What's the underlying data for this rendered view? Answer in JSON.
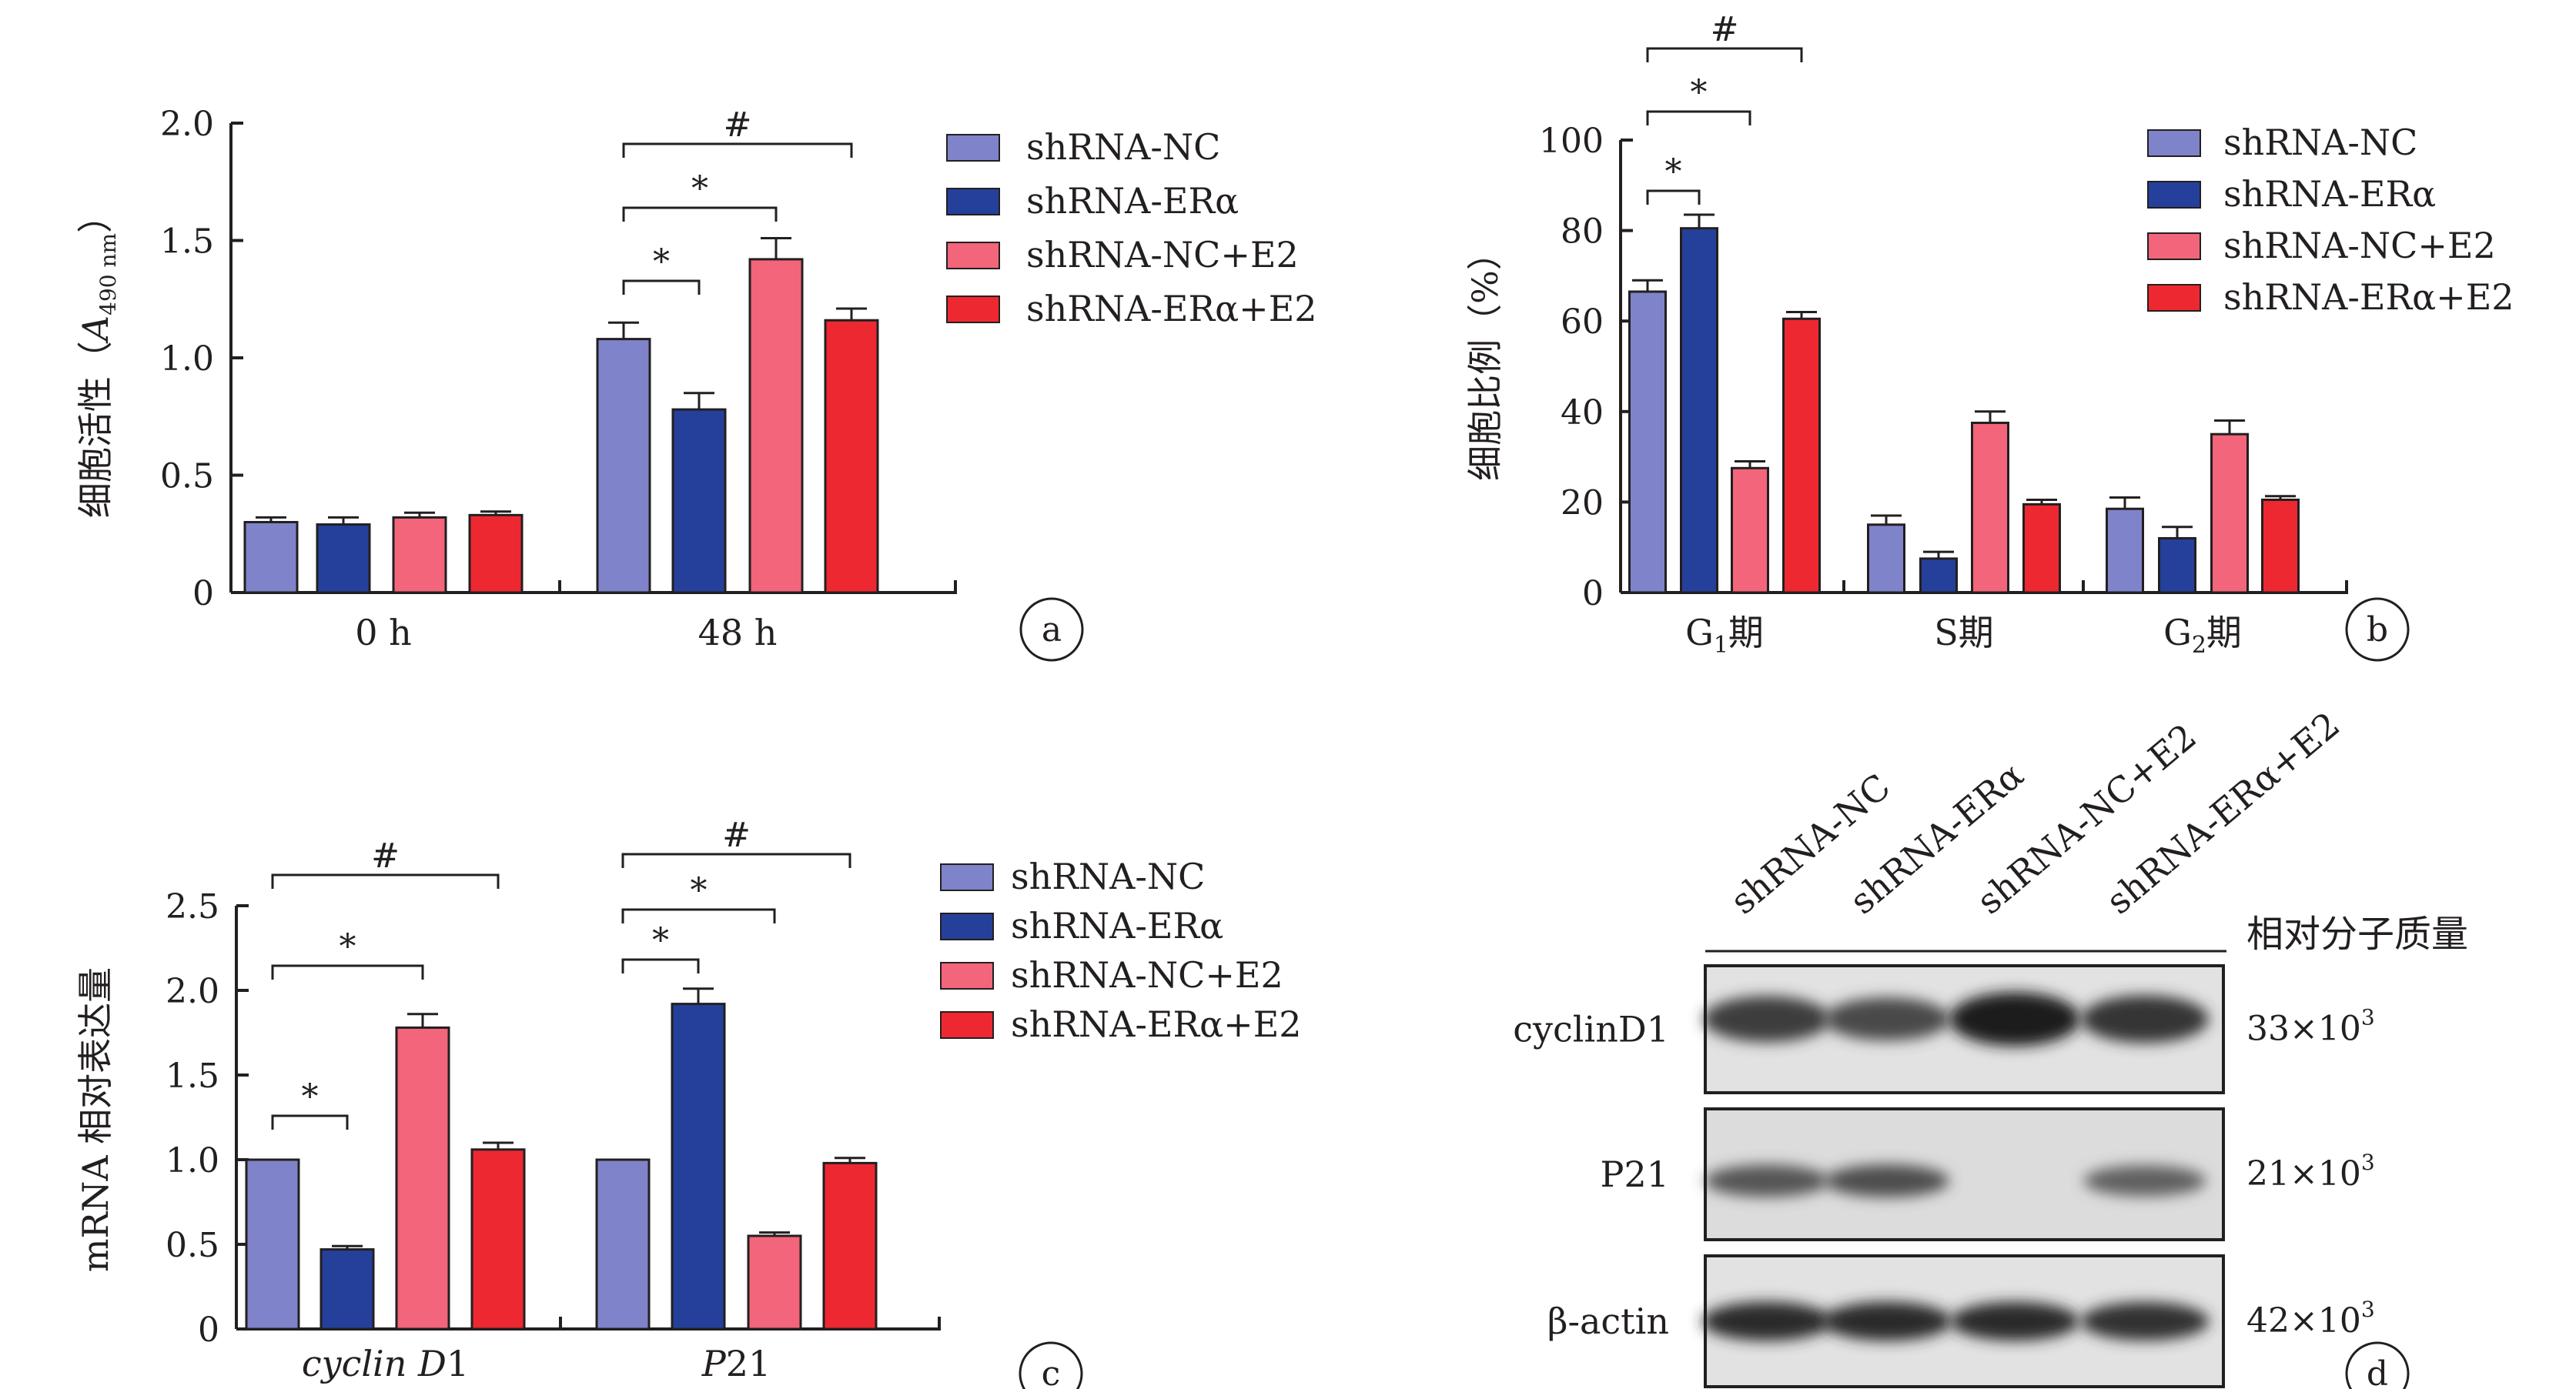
{
  "colors": {
    "shRNA-NC": "#7f83c9",
    "shRNA-ERα": "#25409a",
    "shRNA-NC+E2": "#f2657a",
    "shRNA-ERα+E2": "#ee2831",
    "axis": "#231f20"
  },
  "legend_labels": [
    "shRNA-NC",
    "shRNA-ERα",
    "shRNA-NC+E2",
    "shRNA-ERα+E2"
  ],
  "chart_data": [
    {
      "panel": "a",
      "type": "bar",
      "ylabel_main": "细胞活性（",
      "ylabel_sym": "A",
      "ylabel_sub": "490 nm",
      "ylabel_close": "）",
      "ylim": [
        0,
        2.0
      ],
      "yticks": [
        "0",
        "0.5",
        "1.0",
        "1.5",
        "2.0"
      ],
      "categories": [
        "0 h",
        "48 h"
      ],
      "series": [
        {
          "name": "shRNA-NC",
          "values": [
            0.3,
            1.08
          ],
          "errors": [
            0.02,
            0.07
          ]
        },
        {
          "name": "shRNA-ERα",
          "values": [
            0.29,
            0.78
          ],
          "errors": [
            0.03,
            0.07
          ]
        },
        {
          "name": "shRNA-NC+E2",
          "values": [
            0.32,
            1.42
          ],
          "errors": [
            0.02,
            0.09
          ]
        },
        {
          "name": "shRNA-ERα+E2",
          "values": [
            0.33,
            1.16
          ],
          "errors": [
            0.015,
            0.05
          ]
        }
      ],
      "significance": [
        {
          "label": "*",
          "category": 1,
          "from": 0,
          "to": 1
        },
        {
          "label": "*",
          "category": 1,
          "from": 0,
          "to": 2
        },
        {
          "label": "#",
          "category": 1,
          "from": 0,
          "to": 3
        }
      ],
      "legend_position": "top-right"
    },
    {
      "panel": "b",
      "type": "bar",
      "ylabel_main": "细胞比例（%）",
      "ylim": [
        0,
        100
      ],
      "yticks": [
        "0",
        "20",
        "40",
        "60",
        "80",
        "100"
      ],
      "categories": [
        {
          "pre": "G",
          "sub": "1",
          "post": "期"
        },
        {
          "pre": "S",
          "sub": "",
          "post": "期"
        },
        {
          "pre": "G",
          "sub": "2",
          "post": "期"
        }
      ],
      "series": [
        {
          "name": "shRNA-NC",
          "values": [
            66.5,
            15.0,
            18.5
          ],
          "errors": [
            2.5,
            2.0,
            2.5
          ]
        },
        {
          "name": "shRNA-ERα",
          "values": [
            80.5,
            7.5,
            12.0
          ],
          "errors": [
            3.0,
            1.5,
            2.5
          ]
        },
        {
          "name": "shRNA-NC+E2",
          "values": [
            27.5,
            37.5,
            35.0
          ],
          "errors": [
            1.5,
            2.5,
            3.0
          ]
        },
        {
          "name": "shRNA-ERα+E2",
          "values": [
            60.5,
            19.5,
            20.5
          ],
          "errors": [
            1.5,
            1.0,
            0.8
          ]
        }
      ],
      "significance": [
        {
          "label": "*",
          "category": 0,
          "from": 0,
          "to": 1
        },
        {
          "label": "*",
          "category": 0,
          "from": 0,
          "to": 2
        },
        {
          "label": "#",
          "category": 0,
          "from": 0,
          "to": 3
        }
      ],
      "legend_position": "top-right"
    },
    {
      "panel": "c",
      "type": "bar",
      "ylabel_main": "mRNA 相对表达量",
      "ylim": [
        0,
        2.5
      ],
      "yticks": [
        "0",
        "0.5",
        "1.0",
        "1.5",
        "2.0",
        "2.5"
      ],
      "categories": [
        {
          "italic": "cyclin D",
          "plain": "1"
        },
        {
          "italic": "P",
          "plain": "21"
        }
      ],
      "series": [
        {
          "name": "shRNA-NC",
          "values": [
            1.0,
            1.0
          ],
          "errors": [
            0,
            0
          ]
        },
        {
          "name": "shRNA-ERα",
          "values": [
            0.47,
            1.92
          ],
          "errors": [
            0.02,
            0.09
          ]
        },
        {
          "name": "shRNA-NC+E2",
          "values": [
            1.78,
            0.55
          ],
          "errors": [
            0.08,
            0.02
          ]
        },
        {
          "name": "shRNA-ERα+E2",
          "values": [
            1.06,
            0.98
          ],
          "errors": [
            0.04,
            0.03
          ]
        }
      ],
      "significance": [
        {
          "label": "*",
          "category": 0,
          "from": 0,
          "to": 1
        },
        {
          "label": "*",
          "category": 0,
          "from": 0,
          "to": 2
        },
        {
          "label": "#",
          "category": 0,
          "from": 0,
          "to": 3
        },
        {
          "label": "*",
          "category": 1,
          "from": 0,
          "to": 1
        },
        {
          "label": "*",
          "category": 1,
          "from": 0,
          "to": 2
        },
        {
          "label": "#",
          "category": 1,
          "from": 0,
          "to": 3
        }
      ],
      "legend_position": "top-right"
    }
  ],
  "blot": {
    "panel": "d",
    "lanes": [
      "shRNA-NC",
      "shRNA-ERα",
      "shRNA-NC+E2",
      "shRNA-ERα+E2"
    ],
    "mw_header": "相对分子质量",
    "rows": [
      {
        "name": "cyclinD1",
        "mw_base": "33×10",
        "mw_exp": "3",
        "intensities": [
          0.75,
          0.65,
          1.0,
          0.8
        ]
      },
      {
        "name": "P21",
        "mw_base": "21×10",
        "mw_exp": "3",
        "intensities": [
          0.55,
          0.6,
          0.0,
          0.45
        ]
      },
      {
        "name": "β-actin",
        "mw_base": "42×10",
        "mw_exp": "3",
        "intensities": [
          0.9,
          0.9,
          0.88,
          0.85
        ]
      }
    ]
  },
  "panel_labels": [
    "a",
    "b",
    "c",
    "d"
  ]
}
